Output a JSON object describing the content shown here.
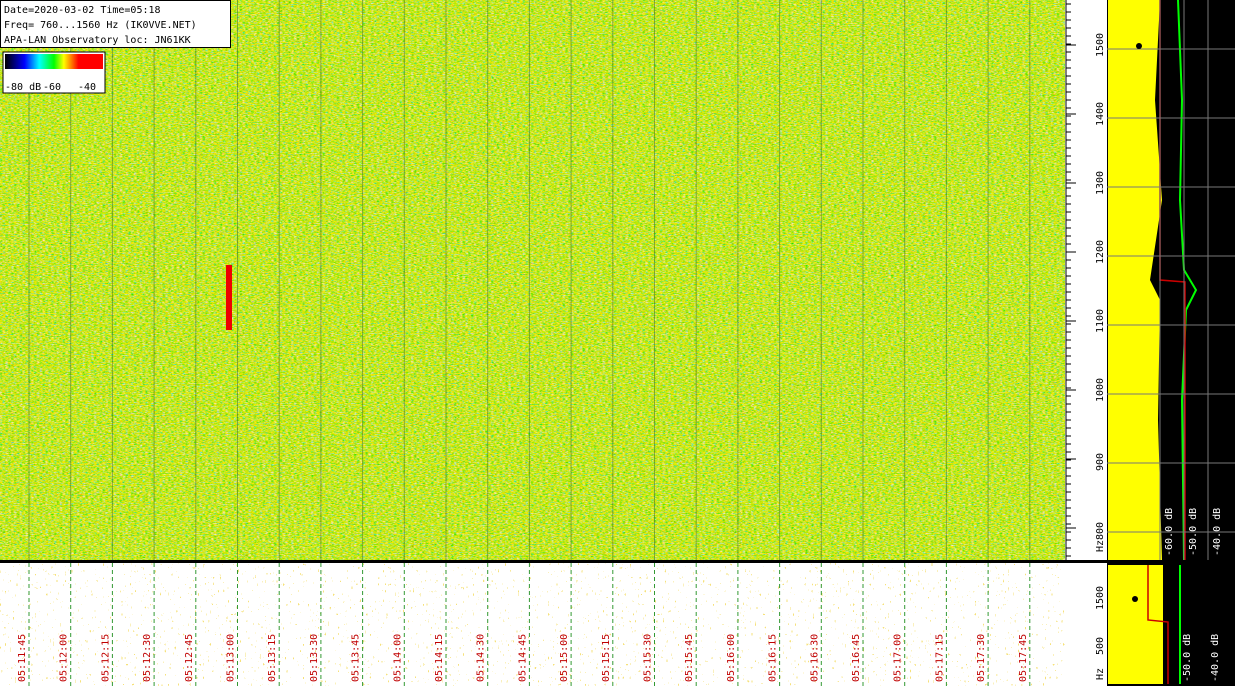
{
  "info": [
    "Date=2020-03-02 Time=05:18",
    "Freq= 760...1560 Hz (IK0VVE.NET)",
    "APA-LAN Observatory loc: JN61KK"
  ],
  "colorbar": [
    "-80 dB",
    "-60",
    "-40"
  ],
  "freq_axis": {
    "ticks": [
      "1500",
      "1400",
      "1300",
      "1200",
      "1100",
      "1000",
      "900",
      "800"
    ],
    "unit": "Hz"
  },
  "level_axis": [
    "-60.0 dB",
    "-50.0 dB",
    "-40.0 dB"
  ],
  "lower_freq_axis": {
    "ticks": [
      "1500",
      "500"
    ],
    "unit": "Hz"
  },
  "lower_level_axis": [
    "-50.0 dB",
    "-40.0 dB"
  ],
  "time_axis": [
    "05:11:45",
    "05:12:00",
    "05:12:15",
    "05:12:30",
    "05:12:45",
    "05:13:00",
    "05:13:15",
    "05:13:30",
    "05:13:45",
    "05:14:00",
    "05:14:15",
    "05:14:30",
    "05:14:45",
    "05:15:00",
    "05:15:15",
    "05:15:30",
    "05:15:45",
    "05:16:00",
    "05:16:15",
    "05:16:30",
    "05:16:45",
    "05:17:00",
    "05:17:15",
    "05:17:30",
    "05:17:45"
  ]
}
